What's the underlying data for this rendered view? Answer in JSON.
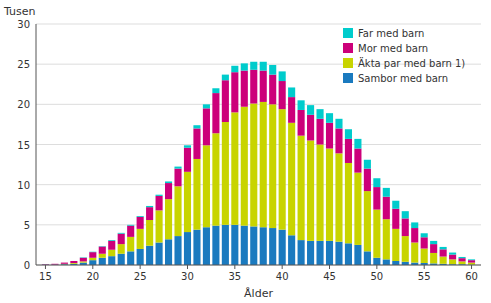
{
  "chart_data": {
    "type": "bar",
    "stacked": true,
    "xlabel": "Ålder",
    "ylabel": "Tusen",
    "x": [
      15,
      16,
      17,
      18,
      19,
      20,
      21,
      22,
      23,
      24,
      25,
      26,
      27,
      28,
      29,
      30,
      31,
      32,
      33,
      34,
      35,
      36,
      37,
      38,
      39,
      40,
      41,
      42,
      43,
      44,
      45,
      46,
      47,
      48,
      49,
      50,
      51,
      52,
      53,
      54,
      55,
      56,
      57,
      58,
      59,
      60
    ],
    "series": [
      {
        "name": "Sambor med barn",
        "color": "#1a7abf",
        "values": [
          0.05,
          0.05,
          0.1,
          0.15,
          0.3,
          0.6,
          0.9,
          1.1,
          1.4,
          1.7,
          2.0,
          2.4,
          2.8,
          3.2,
          3.6,
          4.1,
          4.4,
          4.7,
          4.9,
          5.0,
          5.0,
          4.9,
          4.8,
          4.7,
          4.6,
          4.4,
          3.7,
          3.1,
          3.0,
          3.0,
          3.0,
          2.9,
          2.7,
          2.5,
          1.7,
          0.9,
          0.7,
          0.5,
          0.4,
          0.3,
          0.25,
          0.2,
          0.15,
          0.1,
          0.1,
          0.05
        ]
      },
      {
        "name": "Äkta par med barn 1)",
        "color": "#c8d400",
        "values": [
          0.0,
          0.0,
          0.05,
          0.1,
          0.15,
          0.3,
          0.5,
          0.8,
          1.2,
          1.8,
          2.5,
          3.2,
          4.0,
          5.0,
          6.2,
          7.5,
          8.8,
          10.2,
          11.5,
          12.8,
          14.0,
          14.8,
          15.3,
          15.6,
          15.4,
          15.0,
          14.0,
          13.0,
          12.5,
          12.0,
          11.5,
          11.0,
          10.0,
          9.0,
          7.5,
          6.0,
          5.0,
          4.0,
          3.2,
          2.5,
          1.8,
          1.3,
          0.9,
          0.6,
          0.35,
          0.25
        ]
      },
      {
        "name": "Mor med barn",
        "color": "#cc007a",
        "values": [
          0.05,
          0.1,
          0.15,
          0.25,
          0.45,
          0.7,
          0.9,
          1.1,
          1.3,
          1.4,
          1.5,
          1.6,
          1.8,
          2.0,
          2.2,
          3.0,
          3.8,
          4.6,
          5.0,
          5.2,
          5.0,
          4.5,
          4.2,
          3.9,
          3.7,
          3.5,
          3.2,
          3.2,
          3.2,
          3.2,
          3.2,
          3.1,
          3.0,
          3.0,
          2.8,
          2.8,
          2.8,
          2.5,
          2.2,
          1.8,
          1.4,
          1.1,
          0.9,
          0.6,
          0.4,
          0.3
        ]
      },
      {
        "name": "Far med barn",
        "color": "#00cccc",
        "values": [
          0.0,
          0.0,
          0.0,
          0.0,
          0.05,
          0.05,
          0.05,
          0.1,
          0.1,
          0.1,
          0.1,
          0.15,
          0.15,
          0.2,
          0.25,
          0.3,
          0.4,
          0.5,
          0.6,
          0.7,
          0.8,
          0.9,
          1.0,
          1.1,
          1.2,
          1.2,
          1.2,
          1.2,
          1.2,
          1.2,
          1.2,
          1.2,
          1.2,
          1.2,
          1.1,
          1.1,
          1.1,
          1.0,
          0.9,
          0.7,
          0.5,
          0.4,
          0.3,
          0.25,
          0.15,
          0.1
        ]
      }
    ],
    "xlim": [
      14,
      61
    ],
    "xticks": [
      15,
      20,
      25,
      30,
      35,
      40,
      45,
      50,
      55,
      60
    ],
    "ylim": [
      0,
      30
    ],
    "yticks": [
      0,
      5,
      10,
      15,
      20,
      25,
      30
    ],
    "grid": true,
    "legend": "upper right"
  }
}
